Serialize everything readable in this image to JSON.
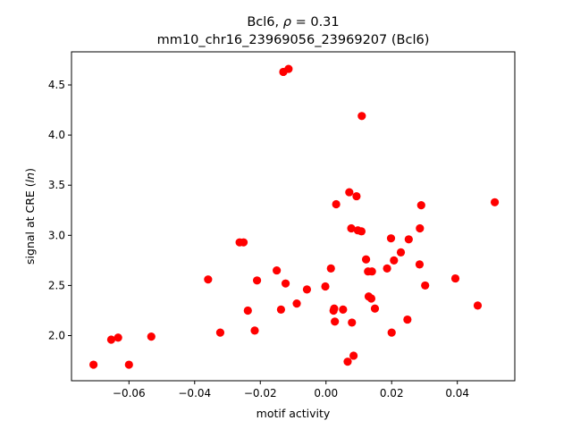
{
  "chart_data": {
    "type": "scatter",
    "title_line1_prefix": "Bcl6, ",
    "title_line1_rho": "ρ",
    "title_line1_suffix": " = 0.31",
    "title_line2": "mm10_chr16_23969056_23969207 (Bcl6)",
    "xlabel": "motif activity",
    "ylabel_prefix": "signal at CRE (",
    "ylabel_italic": "ln",
    "ylabel_suffix": ")",
    "xlim": [
      -0.0775,
      0.0575
    ],
    "ylim": [
      1.55,
      4.83
    ],
    "x_ticks": [
      -0.06,
      -0.04,
      -0.02,
      0.0,
      0.02,
      0.04
    ],
    "x_tick_labels": [
      "−0.06",
      "−0.04",
      "−0.02",
      "0.00",
      "0.02",
      "0.04"
    ],
    "y_ticks": [
      2.0,
      2.5,
      3.0,
      3.5,
      4.0,
      4.5
    ],
    "y_tick_labels": [
      "2.0",
      "2.5",
      "3.0",
      "3.5",
      "4.0",
      "4.5"
    ],
    "marker_color": "#ff0000",
    "points": [
      {
        "x": -0.0708,
        "y": 1.71
      },
      {
        "x": -0.0654,
        "y": 1.96
      },
      {
        "x": -0.0633,
        "y": 1.98
      },
      {
        "x": -0.06,
        "y": 1.71
      },
      {
        "x": -0.0532,
        "y": 1.99
      },
      {
        "x": -0.0359,
        "y": 2.56
      },
      {
        "x": -0.0322,
        "y": 2.03
      },
      {
        "x": -0.0263,
        "y": 2.93
      },
      {
        "x": -0.0251,
        "y": 2.93
      },
      {
        "x": -0.0238,
        "y": 2.25
      },
      {
        "x": -0.0217,
        "y": 2.05
      },
      {
        "x": -0.021,
        "y": 2.55
      },
      {
        "x": -0.015,
        "y": 2.65
      },
      {
        "x": -0.0137,
        "y": 2.26
      },
      {
        "x": -0.013,
        "y": 4.63
      },
      {
        "x": -0.0123,
        "y": 2.52
      },
      {
        "x": -0.0114,
        "y": 4.66
      },
      {
        "x": -0.0089,
        "y": 2.32
      },
      {
        "x": -0.0058,
        "y": 2.46
      },
      {
        "x": -0.0002,
        "y": 2.49
      },
      {
        "x": 0.0015,
        "y": 2.67
      },
      {
        "x": 0.0023,
        "y": 2.25
      },
      {
        "x": 0.0025,
        "y": 2.27
      },
      {
        "x": 0.0027,
        "y": 2.14
      },
      {
        "x": 0.0031,
        "y": 3.31
      },
      {
        "x": 0.0052,
        "y": 2.26
      },
      {
        "x": 0.0066,
        "y": 1.74
      },
      {
        "x": 0.0071,
        "y": 3.43
      },
      {
        "x": 0.0077,
        "y": 3.07
      },
      {
        "x": 0.0079,
        "y": 2.13
      },
      {
        "x": 0.0084,
        "y": 1.8
      },
      {
        "x": 0.0093,
        "y": 3.39
      },
      {
        "x": 0.0097,
        "y": 3.05
      },
      {
        "x": 0.0108,
        "y": 3.04
      },
      {
        "x": 0.0109,
        "y": 4.19
      },
      {
        "x": 0.0122,
        "y": 2.76
      },
      {
        "x": 0.0128,
        "y": 2.64
      },
      {
        "x": 0.013,
        "y": 2.39
      },
      {
        "x": 0.0138,
        "y": 2.37
      },
      {
        "x": 0.014,
        "y": 2.64
      },
      {
        "x": 0.0149,
        "y": 2.27
      },
      {
        "x": 0.0186,
        "y": 2.67
      },
      {
        "x": 0.0198,
        "y": 2.97
      },
      {
        "x": 0.02,
        "y": 2.03
      },
      {
        "x": 0.0207,
        "y": 2.75
      },
      {
        "x": 0.0228,
        "y": 2.83
      },
      {
        "x": 0.0248,
        "y": 2.16
      },
      {
        "x": 0.0252,
        "y": 2.96
      },
      {
        "x": 0.0285,
        "y": 2.71
      },
      {
        "x": 0.0286,
        "y": 3.07
      },
      {
        "x": 0.029,
        "y": 3.3
      },
      {
        "x": 0.0302,
        "y": 2.5
      },
      {
        "x": 0.0394,
        "y": 2.57
      },
      {
        "x": 0.0462,
        "y": 2.3
      },
      {
        "x": 0.0514,
        "y": 3.33
      }
    ]
  }
}
